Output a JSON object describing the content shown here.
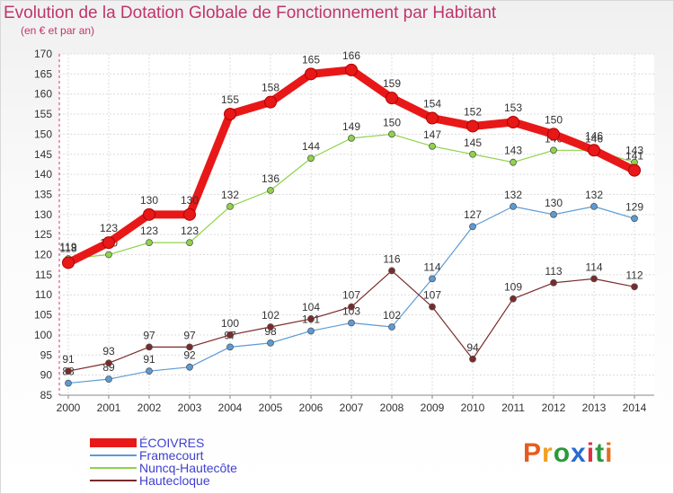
{
  "header": {
    "title": "Evolution de la Dotation Globale de Fonctionnement par Habitant",
    "subtitle": "(en € et par an)"
  },
  "logo": {
    "text": "Proxiti",
    "colors": [
      "#e85a1e",
      "#f0a020",
      "#2a9a3a",
      "#2a6ad0",
      "#e03040",
      "#2a9a3a",
      "#e07020"
    ]
  },
  "chart_data": {
    "type": "line",
    "title": "Evolution de la Dotation Globale de Fonctionnement par Habitant",
    "subtitle": "(en € et par an)",
    "xlabel": "",
    "ylabel": "",
    "ylim": [
      85,
      170
    ],
    "yticks": [
      85,
      90,
      95,
      100,
      105,
      110,
      115,
      120,
      125,
      130,
      135,
      140,
      145,
      150,
      155,
      160,
      165,
      170
    ],
    "x": [
      "2000",
      "2001",
      "2002",
      "2003",
      "2004",
      "2005",
      "2006",
      "2007",
      "2008",
      "2009",
      "2010",
      "2011",
      "2012",
      "2013",
      "2014"
    ],
    "legend_position": "bottom-left",
    "series": [
      {
        "name": "Framecourt",
        "color": "#5b9bd5",
        "values": [
          88,
          89,
          91,
          92,
          97,
          98,
          101,
          103,
          102,
          114,
          127,
          132,
          130,
          132,
          129
        ]
      },
      {
        "name": "Nuncq-Hautecôte",
        "color": "#8fd34a",
        "values": [
          119,
          120,
          123,
          123,
          132,
          136,
          144,
          149,
          150,
          147,
          145,
          143,
          146,
          146,
          143
        ]
      },
      {
        "name": "Hautecloque",
        "color": "#7a2a2a",
        "values": [
          91,
          93,
          97,
          97,
          100,
          102,
          104,
          107,
          116,
          107,
          94,
          109,
          113,
          114,
          112
        ]
      },
      {
        "name": "ÉCOIVRES",
        "color": "#e81818",
        "values": [
          118,
          123,
          130,
          130,
          155,
          158,
          165,
          166,
          159,
          154,
          152,
          153,
          150,
          146,
          141
        ]
      }
    ],
    "legend_order": [
      "ÉCOIVRES",
      "Framecourt",
      "Nuncq-Hautecôte",
      "Hautecloque"
    ]
  }
}
